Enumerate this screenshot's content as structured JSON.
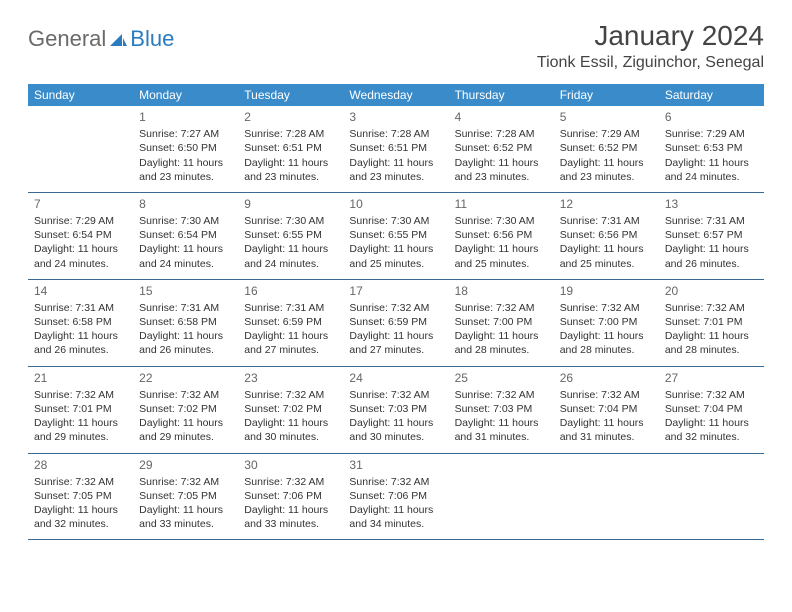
{
  "logo": {
    "general": "General",
    "blue": "Blue"
  },
  "title": "January 2024",
  "location": "Tionk Essil, Ziguinchor, Senegal",
  "colors": {
    "header_bg": "#3a8bc9",
    "header_text": "#ffffff",
    "row_border": "#3a6a94",
    "logo_gray": "#6a6a6a",
    "logo_blue": "#2b7bbf",
    "text": "#333333",
    "daynum": "#666666"
  },
  "day_headers": [
    "Sunday",
    "Monday",
    "Tuesday",
    "Wednesday",
    "Thursday",
    "Friday",
    "Saturday"
  ],
  "weeks": [
    [
      null,
      {
        "n": "1",
        "sr": "7:27 AM",
        "ss": "6:50 PM",
        "dl": "11 hours and 23 minutes."
      },
      {
        "n": "2",
        "sr": "7:28 AM",
        "ss": "6:51 PM",
        "dl": "11 hours and 23 minutes."
      },
      {
        "n": "3",
        "sr": "7:28 AM",
        "ss": "6:51 PM",
        "dl": "11 hours and 23 minutes."
      },
      {
        "n": "4",
        "sr": "7:28 AM",
        "ss": "6:52 PM",
        "dl": "11 hours and 23 minutes."
      },
      {
        "n": "5",
        "sr": "7:29 AM",
        "ss": "6:52 PM",
        "dl": "11 hours and 23 minutes."
      },
      {
        "n": "6",
        "sr": "7:29 AM",
        "ss": "6:53 PM",
        "dl": "11 hours and 24 minutes."
      }
    ],
    [
      {
        "n": "7",
        "sr": "7:29 AM",
        "ss": "6:54 PM",
        "dl": "11 hours and 24 minutes."
      },
      {
        "n": "8",
        "sr": "7:30 AM",
        "ss": "6:54 PM",
        "dl": "11 hours and 24 minutes."
      },
      {
        "n": "9",
        "sr": "7:30 AM",
        "ss": "6:55 PM",
        "dl": "11 hours and 24 minutes."
      },
      {
        "n": "10",
        "sr": "7:30 AM",
        "ss": "6:55 PM",
        "dl": "11 hours and 25 minutes."
      },
      {
        "n": "11",
        "sr": "7:30 AM",
        "ss": "6:56 PM",
        "dl": "11 hours and 25 minutes."
      },
      {
        "n": "12",
        "sr": "7:31 AM",
        "ss": "6:56 PM",
        "dl": "11 hours and 25 minutes."
      },
      {
        "n": "13",
        "sr": "7:31 AM",
        "ss": "6:57 PM",
        "dl": "11 hours and 26 minutes."
      }
    ],
    [
      {
        "n": "14",
        "sr": "7:31 AM",
        "ss": "6:58 PM",
        "dl": "11 hours and 26 minutes."
      },
      {
        "n": "15",
        "sr": "7:31 AM",
        "ss": "6:58 PM",
        "dl": "11 hours and 26 minutes."
      },
      {
        "n": "16",
        "sr": "7:31 AM",
        "ss": "6:59 PM",
        "dl": "11 hours and 27 minutes."
      },
      {
        "n": "17",
        "sr": "7:32 AM",
        "ss": "6:59 PM",
        "dl": "11 hours and 27 minutes."
      },
      {
        "n": "18",
        "sr": "7:32 AM",
        "ss": "7:00 PM",
        "dl": "11 hours and 28 minutes."
      },
      {
        "n": "19",
        "sr": "7:32 AM",
        "ss": "7:00 PM",
        "dl": "11 hours and 28 minutes."
      },
      {
        "n": "20",
        "sr": "7:32 AM",
        "ss": "7:01 PM",
        "dl": "11 hours and 28 minutes."
      }
    ],
    [
      {
        "n": "21",
        "sr": "7:32 AM",
        "ss": "7:01 PM",
        "dl": "11 hours and 29 minutes."
      },
      {
        "n": "22",
        "sr": "7:32 AM",
        "ss": "7:02 PM",
        "dl": "11 hours and 29 minutes."
      },
      {
        "n": "23",
        "sr": "7:32 AM",
        "ss": "7:02 PM",
        "dl": "11 hours and 30 minutes."
      },
      {
        "n": "24",
        "sr": "7:32 AM",
        "ss": "7:03 PM",
        "dl": "11 hours and 30 minutes."
      },
      {
        "n": "25",
        "sr": "7:32 AM",
        "ss": "7:03 PM",
        "dl": "11 hours and 31 minutes."
      },
      {
        "n": "26",
        "sr": "7:32 AM",
        "ss": "7:04 PM",
        "dl": "11 hours and 31 minutes."
      },
      {
        "n": "27",
        "sr": "7:32 AM",
        "ss": "7:04 PM",
        "dl": "11 hours and 32 minutes."
      }
    ],
    [
      {
        "n": "28",
        "sr": "7:32 AM",
        "ss": "7:05 PM",
        "dl": "11 hours and 32 minutes."
      },
      {
        "n": "29",
        "sr": "7:32 AM",
        "ss": "7:05 PM",
        "dl": "11 hours and 33 minutes."
      },
      {
        "n": "30",
        "sr": "7:32 AM",
        "ss": "7:06 PM",
        "dl": "11 hours and 33 minutes."
      },
      {
        "n": "31",
        "sr": "7:32 AM",
        "ss": "7:06 PM",
        "dl": "11 hours and 34 minutes."
      },
      null,
      null,
      null
    ]
  ],
  "labels": {
    "sunrise": "Sunrise: ",
    "sunset": "Sunset: ",
    "daylight": "Daylight: "
  },
  "typography": {
    "title_fontsize": 28,
    "location_fontsize": 16,
    "header_fontsize": 12,
    "cell_fontsize": 10.5,
    "daynum_fontsize": 12
  }
}
